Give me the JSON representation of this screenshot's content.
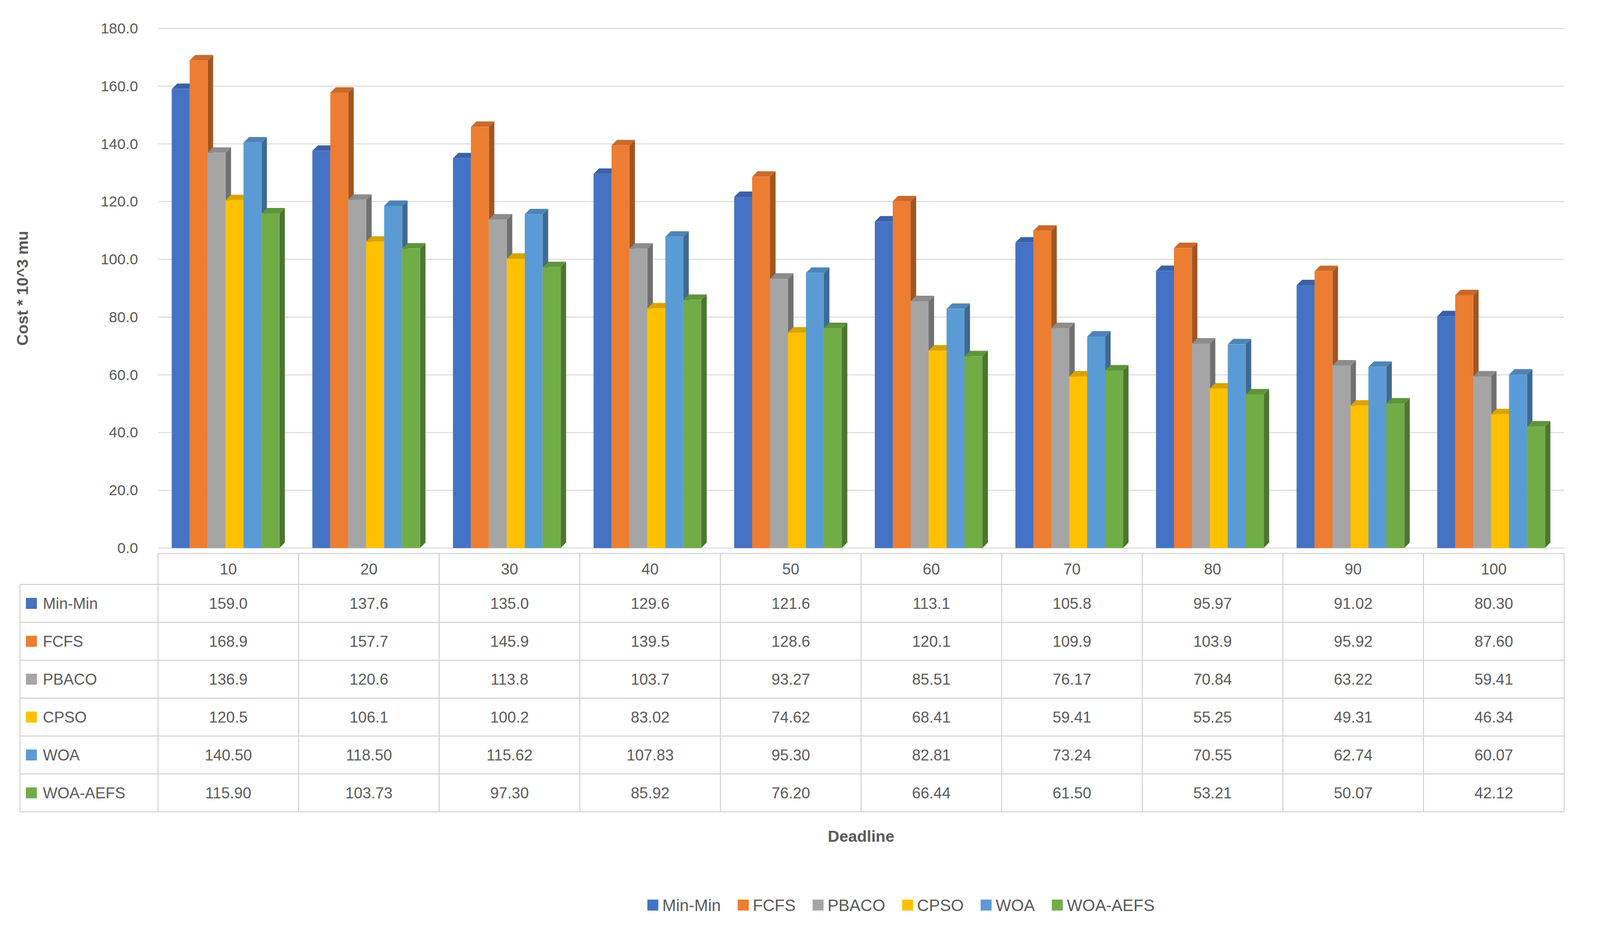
{
  "chart_data": {
    "type": "bar",
    "x_label": "Deadline",
    "y_label": "Cost * 10^3 mu",
    "categories": [
      "10",
      "20",
      "30",
      "40",
      "50",
      "60",
      "70",
      "80",
      "90",
      "100"
    ],
    "ylim": [
      0,
      180
    ],
    "yticks": [
      {
        "value": 0,
        "label": "0.0"
      },
      {
        "value": 20,
        "label": "20.0"
      },
      {
        "value": 40,
        "label": "40.0"
      },
      {
        "value": 60,
        "label": "60.0"
      },
      {
        "value": 80,
        "label": "80.0"
      },
      {
        "value": 100,
        "label": "100.0"
      },
      {
        "value": 120,
        "label": "120.0"
      },
      {
        "value": 140,
        "label": "140.0"
      },
      {
        "value": 160,
        "label": "160.0"
      },
      {
        "value": 180,
        "label": "180.0"
      }
    ],
    "grid": true,
    "legend": "bottom",
    "series": [
      {
        "name": "Min-Min",
        "color": "#4472c4",
        "values": [
          159.0,
          137.6,
          135.0,
          129.6,
          121.6,
          113.1,
          105.8,
          95.97,
          91.02,
          80.3
        ],
        "value_labels": [
          "159.0",
          "137.6",
          "135.0",
          "129.6",
          "121.6",
          "113.1",
          "105.8",
          "95.97",
          "91.02",
          "80.30"
        ]
      },
      {
        "name": "FCFS",
        "color": "#ed7d31",
        "values": [
          168.9,
          157.7,
          145.9,
          139.5,
          128.6,
          120.1,
          109.9,
          103.9,
          95.92,
          87.6
        ],
        "value_labels": [
          "168.9",
          "157.7",
          "145.9",
          "139.5",
          "128.6",
          "120.1",
          "109.9",
          "103.9",
          "95.92",
          "87.60"
        ]
      },
      {
        "name": "PBACO",
        "color": "#a5a5a5",
        "values": [
          136.9,
          120.6,
          113.8,
          103.7,
          93.27,
          85.51,
          76.17,
          70.84,
          63.22,
          59.41
        ],
        "value_labels": [
          "136.9",
          "120.6",
          "113.8",
          "103.7",
          "93.27",
          "85.51",
          "76.17",
          "70.84",
          "63.22",
          "59.41"
        ]
      },
      {
        "name": "CPSO",
        "color": "#ffc000",
        "values": [
          120.5,
          106.1,
          100.2,
          83.02,
          74.62,
          68.41,
          59.41,
          55.25,
          49.31,
          46.34
        ],
        "value_labels": [
          "120.5",
          "106.1",
          "100.2",
          "83.02",
          "74.62",
          "68.41",
          "59.41",
          "55.25",
          "49.31",
          "46.34"
        ]
      },
      {
        "name": "WOA",
        "color": "#5b9bd5",
        "values": [
          140.5,
          118.5,
          115.62,
          107.83,
          95.3,
          82.81,
          73.24,
          70.55,
          62.74,
          60.07
        ],
        "value_labels": [
          "140.50",
          "118.50",
          "115.62",
          "107.83",
          "95.30",
          "82.81",
          "73.24",
          "70.55",
          "62.74",
          "60.07"
        ]
      },
      {
        "name": "WOA-AEFS",
        "color": "#70ad47",
        "values": [
          115.9,
          103.73,
          97.3,
          85.92,
          76.2,
          66.44,
          61.5,
          53.21,
          50.07,
          42.12
        ],
        "value_labels": [
          "115.90",
          "103.73",
          "97.30",
          "85.92",
          "76.20",
          "66.44",
          "61.50",
          "53.21",
          "50.07",
          "42.12"
        ]
      }
    ]
  }
}
